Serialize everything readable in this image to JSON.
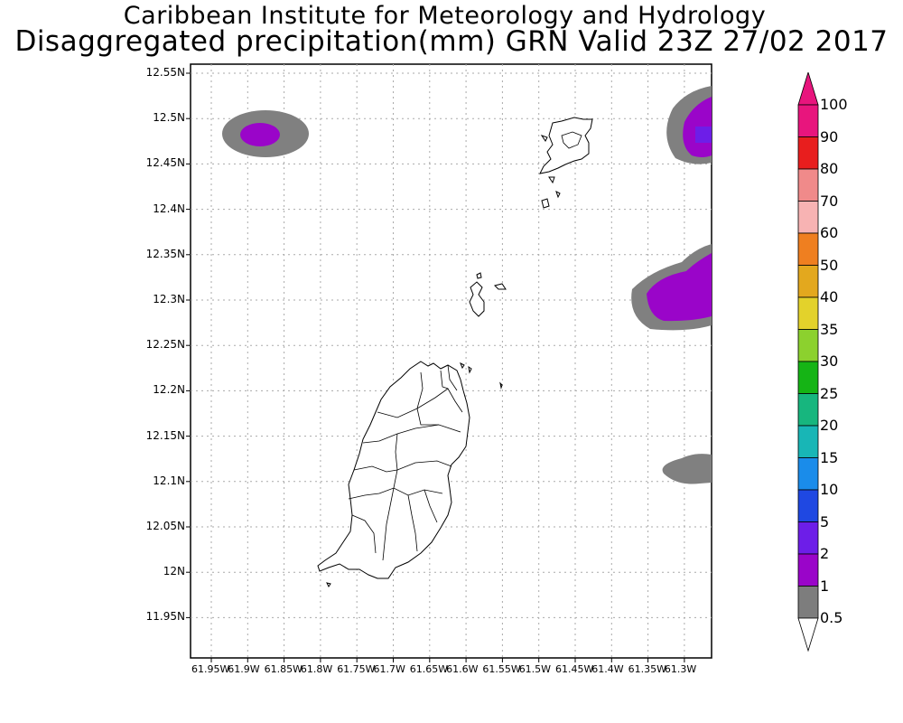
{
  "header": {
    "title": "Caribbean Institute for Meteorology and Hydrology",
    "subtitle": "Disaggregated precipitation(mm) GRN Valid 23Z 27/02 2017"
  },
  "map": {
    "lat_ticks": [
      "12.55N",
      "12.5N",
      "12.45N",
      "12.4N",
      "12.35N",
      "12.3N",
      "12.25N",
      "12.2N",
      "12.15N",
      "12.1N",
      "12.05N",
      "12N",
      "11.95N"
    ],
    "lon_ticks": [
      "61.95W",
      "61.9W",
      "61.85W",
      "61.8W",
      "61.75W",
      "61.7W",
      "61.65W",
      "61.6W",
      "61.55W",
      "61.5W",
      "61.45W",
      "61.4W",
      "61.35W",
      "61.3W"
    ],
    "features": [
      "grenada-island",
      "carriacou-island",
      "petite-martinique-island",
      "precip-cell-northwest",
      "precip-cell-northeast",
      "precip-cell-east",
      "precip-cell-southeast"
    ]
  },
  "colorbar": {
    "levels": [
      "100",
      "90",
      "80",
      "70",
      "60",
      "50",
      "40",
      "35",
      "30",
      "25",
      "20",
      "15",
      "10",
      "5",
      "2",
      "1",
      "0.5"
    ],
    "colors": [
      "#e8157d",
      "#e81e1e",
      "#f08a8a",
      "#f7b3b3",
      "#ef7f20",
      "#e3a81e",
      "#e3d22b",
      "#8cd12e",
      "#15b415",
      "#17b67e",
      "#18b6b6",
      "#1a8cea",
      "#1f48e2",
      "#6d1ee8",
      "#9a05c9",
      "#7d7d7d",
      "#ffffff"
    ],
    "tip_top_color": "#e8157d",
    "tip_bottom_color": "#ffffff"
  }
}
